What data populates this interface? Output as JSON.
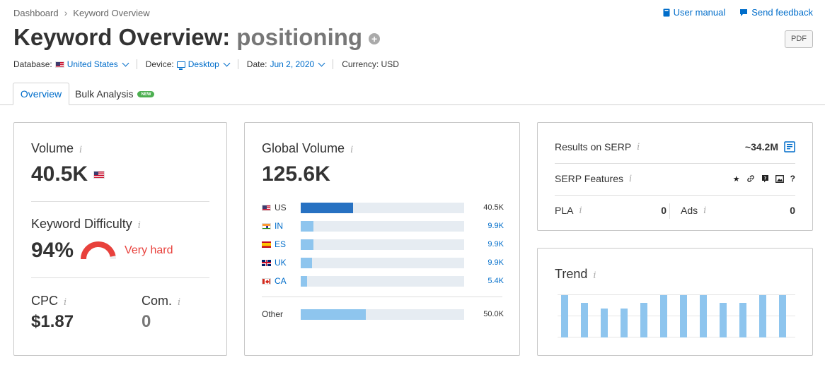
{
  "breadcrumb": {
    "home": "Dashboard",
    "sep": "›",
    "current": "Keyword Overview"
  },
  "top_links": {
    "manual": "User manual",
    "feedback": "Send feedback"
  },
  "title": {
    "prefix": "Keyword Overview:",
    "keyword": "positioning",
    "plus": "+"
  },
  "pdf_label": "PDF",
  "filters": {
    "database_label": "Database:",
    "database_value": "United States",
    "device_label": "Device:",
    "device_value": "Desktop",
    "date_label": "Date:",
    "date_value": "Jun 2, 2020",
    "currency_label": "Currency: USD"
  },
  "tabs": {
    "overview": "Overview",
    "bulk": "Bulk Analysis",
    "new": "NEW"
  },
  "info_glyph": "i",
  "volume": {
    "label": "Volume",
    "value": "40.5K"
  },
  "kd": {
    "label": "Keyword Difficulty",
    "value": "94%",
    "level": "Very hard",
    "percent": 94,
    "color": "#e8413c"
  },
  "cpc": {
    "label": "CPC",
    "value": "$1.87"
  },
  "com": {
    "label": "Com.",
    "value": "0"
  },
  "global": {
    "label": "Global Volume",
    "value": "125.6K",
    "rows": [
      {
        "code": "US",
        "flag": "us",
        "value": "40.5K",
        "share": 0.32,
        "highlight": true
      },
      {
        "code": "IN",
        "flag": "in",
        "value": "9.9K",
        "share": 0.08,
        "highlight": false
      },
      {
        "code": "ES",
        "flag": "es",
        "value": "9.9K",
        "share": 0.08,
        "highlight": false
      },
      {
        "code": "UK",
        "flag": "uk",
        "value": "9.9K",
        "share": 0.07,
        "highlight": false
      },
      {
        "code": "CA",
        "flag": "ca",
        "value": "5.4K",
        "share": 0.04,
        "highlight": false
      }
    ],
    "other": {
      "label": "Other",
      "value": "50.0K",
      "share": 0.4
    }
  },
  "serp": {
    "results_label": "Results on SERP",
    "results_value": "~34.2M",
    "features_label": "SERP Features",
    "features_icons": [
      "star-icon",
      "link-icon",
      "quote-icon",
      "image-icon",
      "question-icon"
    ],
    "pla_label": "PLA",
    "pla_value": "0",
    "ads_label": "Ads",
    "ads_value": "0"
  },
  "trend": {
    "label": "Trend",
    "values": [
      1.0,
      0.82,
      0.68,
      0.68,
      0.82,
      1.0,
      1.0,
      1.0,
      0.82,
      0.82,
      1.0,
      1.0
    ]
  },
  "colors": {
    "accent": "#006dca",
    "bar_dark": "#2771c2",
    "bar_light": "#8ec5ee",
    "danger": "#e8413c"
  }
}
